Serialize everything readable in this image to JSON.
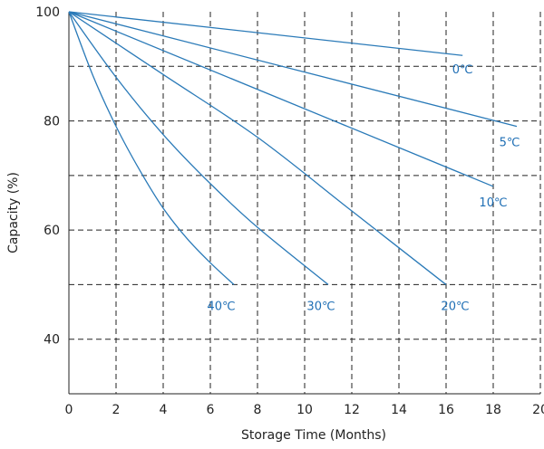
{
  "chart_data": {
    "type": "line",
    "title": "",
    "xlabel": "Storage Time (Months)",
    "ylabel": "Capacity (%)",
    "xlim": [
      0,
      20
    ],
    "ylim": [
      30,
      100
    ],
    "xticks": [
      0,
      2,
      4,
      6,
      8,
      10,
      12,
      14,
      16,
      18,
      20
    ],
    "yticks": [
      40,
      60,
      80,
      100
    ],
    "grid": true,
    "legend": "inline labels at line ends",
    "line_color": "#2a7ab8",
    "label_color": "#1f6fb5",
    "series": [
      {
        "name": "0℃",
        "x": [
          0,
          16.7
        ],
        "y": [
          100,
          92
        ]
      },
      {
        "name": "5℃",
        "x": [
          0,
          19
        ],
        "y": [
          100,
          79
        ]
      },
      {
        "name": "10℃",
        "x": [
          0,
          18
        ],
        "y": [
          100,
          68
        ]
      },
      {
        "name": "20℃",
        "x": [
          0,
          4,
          8,
          12,
          16
        ],
        "y": [
          100,
          88.5,
          77,
          63.5,
          50
        ]
      },
      {
        "name": "30℃",
        "x": [
          0,
          2,
          4,
          6,
          8,
          11
        ],
        "y": [
          100,
          88,
          77.5,
          68.5,
          60.5,
          50
        ]
      },
      {
        "name": "40℃",
        "x": [
          0,
          1,
          2,
          3,
          4,
          5,
          6,
          7
        ],
        "y": [
          100,
          88.5,
          79,
          71,
          64,
          58.5,
          54,
          50
        ]
      }
    ]
  }
}
